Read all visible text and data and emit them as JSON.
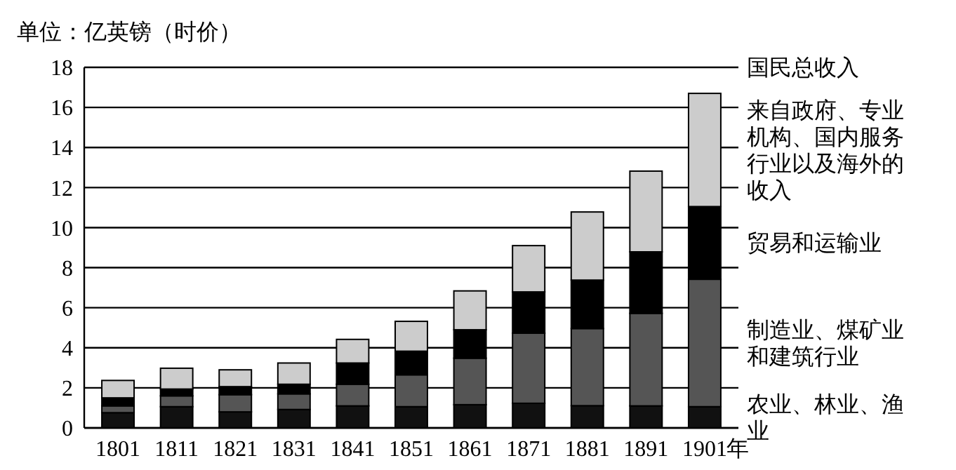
{
  "chart_data": {
    "type": "bar",
    "stacked": true,
    "ylabel": "单位：亿英镑（时价）",
    "xlabel": "年",
    "legend_title": "国民总收入",
    "legend": "right",
    "grid": "y",
    "categories": [
      "1801",
      "1811",
      "1821",
      "1831",
      "1841",
      "1851",
      "1861",
      "1871",
      "1881",
      "1891",
      "1901"
    ],
    "ylim": [
      0,
      18
    ],
    "yticks": [
      0,
      2,
      4,
      6,
      8,
      10,
      12,
      14,
      16,
      18
    ],
    "series": [
      {
        "name": "农业、林业、渔业",
        "color": "#111111",
        "values": [
          0.76,
          1.06,
          0.8,
          0.92,
          1.1,
          1.06,
          1.16,
          1.23,
          1.11,
          1.1,
          1.06
        ]
      },
      {
        "name": "制造业、煤矿业和建筑行业",
        "color": "#555555",
        "values": [
          0.34,
          0.54,
          0.86,
          0.78,
          1.08,
          1.59,
          2.32,
          3.5,
          3.85,
          4.62,
          6.36
        ]
      },
      {
        "name": "贸易和运输业",
        "color": "#000000",
        "values": [
          0.4,
          0.34,
          0.4,
          0.48,
          1.06,
          1.18,
          1.42,
          2.06,
          2.42,
          3.07,
          3.63
        ]
      },
      {
        "name": "来自政府、专业机构、国内服务行业以及海外的收入",
        "color": "#cccccc",
        "values": [
          0.87,
          1.04,
          0.84,
          1.06,
          1.18,
          1.49,
          1.94,
          2.31,
          3.4,
          4.03,
          5.65
        ]
      }
    ]
  }
}
